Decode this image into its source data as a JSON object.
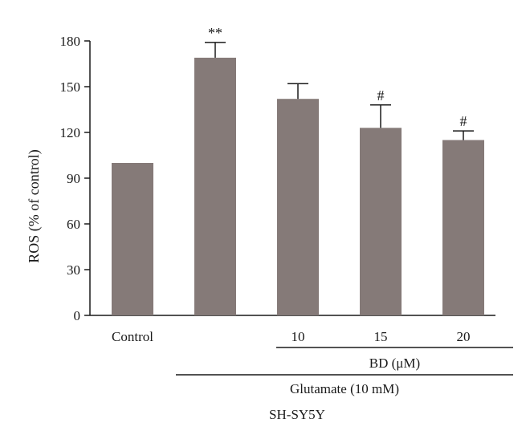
{
  "chart_data": {
    "type": "bar",
    "ylabel": "ROS (% of control)",
    "ylim": [
      0,
      180
    ],
    "yticks": [
      0,
      30,
      60,
      90,
      120,
      150,
      180
    ],
    "categories": [
      "Control",
      "",
      "10",
      "15",
      "20"
    ],
    "values": [
      100,
      169,
      142,
      123,
      115
    ],
    "errors": [
      0,
      10,
      10,
      15,
      6
    ],
    "annotations": [
      "",
      "**",
      "",
      "#",
      "#"
    ],
    "bar_color": "#857a78",
    "grid": false,
    "groups": [
      {
        "label": "BD (μM)",
        "from_category": 2,
        "to_category": 4
      },
      {
        "label": "Glutamate (10 mM)",
        "from_category": 1,
        "to_category": 4
      }
    ],
    "cell_line": "SH-SY5Y"
  }
}
